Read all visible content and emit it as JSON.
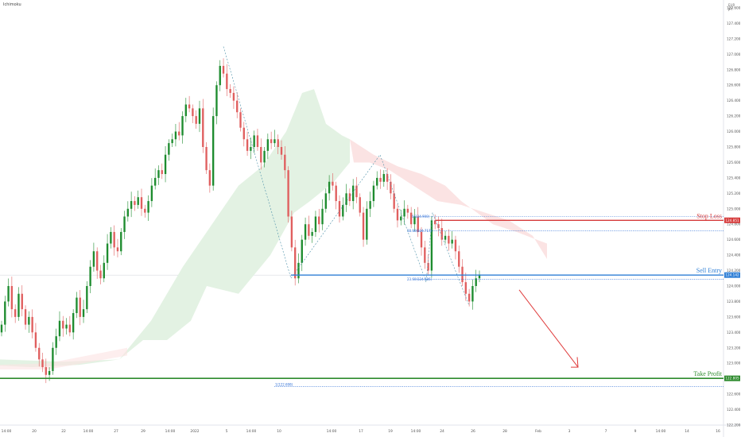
{
  "header": {
    "indicator_label": "Ichimoku",
    "symbol_lines": [
      "EUR",
      "JPY"
    ]
  },
  "colors": {
    "bull": "#1e8c2f",
    "bear": "#e05f5f",
    "cloud_bull": "#e3f2e3",
    "cloud_bear": "#fbe3e3",
    "stop_loss": "#d63a3a",
    "sell_entry": "#2f7fd6",
    "take_profit": "#2e8b2e",
    "fib": "#2f6fd6",
    "arrow": "#e03c3c",
    "wick": "#555555"
  },
  "axes": {
    "y_min": 122.2,
    "y_max": 127.6,
    "y_ticks": [
      "122.200",
      "122.400",
      "122.600",
      "122.800",
      "123.000",
      "123.200",
      "123.400",
      "123.600",
      "123.800",
      "124.000",
      "124.200",
      "124.400",
      "124.600",
      "124.800",
      "125.000",
      "125.200",
      "125.400",
      "125.600",
      "125.800",
      "126.000",
      "126.200",
      "126.400",
      "126.600",
      "126.800",
      "127.000",
      "127.200",
      "127.400",
      "127.600"
    ],
    "x_ticks": [
      "14:00",
      "20",
      "22",
      "14:00",
      "27",
      "29",
      "14:00",
      "2022",
      "5",
      "14:00",
      "10",
      "14:00",
      "17",
      "19",
      "14:00",
      "24",
      "26",
      "28",
      "Feb",
      "3",
      "7",
      "9",
      "14:00",
      "14",
      "16"
    ]
  },
  "levels": {
    "stop_loss": {
      "label": "Stop Loss",
      "value": "124.851",
      "y": 124.851
    },
    "sell_entry": {
      "label": "Sell Entry",
      "value": "124.142",
      "y": 124.142
    },
    "take_profit": {
      "label": "Take Profit",
      "value": "122.805",
      "y": 122.805
    }
  },
  "fib_labels": {
    "top": "0(124.900)",
    "mid": "38.60(124.717)",
    "low": "23.60(124.086)",
    "bottom": "1(122.698)"
  },
  "chart_data": {
    "type": "candlestick",
    "y_range": [
      122.2,
      127.6
    ],
    "lines": [
      {
        "name": "Stop Loss",
        "y": 124.851
      },
      {
        "name": "Sell Entry",
        "y": 124.142
      },
      {
        "name": "Take Profit",
        "y": 122.805
      }
    ],
    "annotation": "arrow pointing down toward Take Profit"
  }
}
